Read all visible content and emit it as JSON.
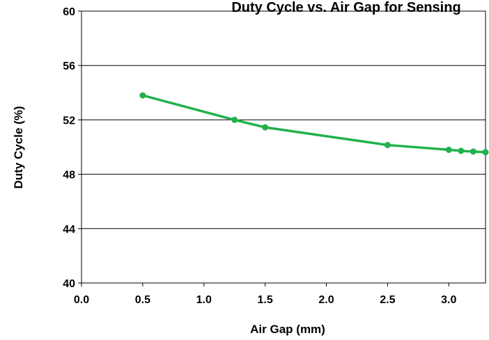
{
  "chart_data": {
    "type": "line",
    "title": "Duty Cycle vs. Air Gap for Sensing",
    "xlabel": "Air Gap (mm)",
    "ylabel": "Duty Cycle (%)",
    "xlim": [
      0.0,
      3.3
    ],
    "ylim": [
      40,
      60
    ],
    "xticks": [
      "0.0",
      "0.5",
      "1.0",
      "1.5",
      "2.0",
      "2.5",
      "3.0"
    ],
    "yticks": [
      "40",
      "44",
      "48",
      "52",
      "56",
      "60"
    ],
    "grid": "horizontal",
    "series": [
      {
        "x": [
          0.5,
          1.25,
          1.5,
          2.5,
          3.0,
          3.1,
          3.2,
          3.3
        ],
        "y": [
          53.8,
          52.0,
          51.45,
          50.15,
          49.8,
          49.72,
          49.67,
          49.62
        ],
        "color": "#22b14c"
      }
    ]
  }
}
